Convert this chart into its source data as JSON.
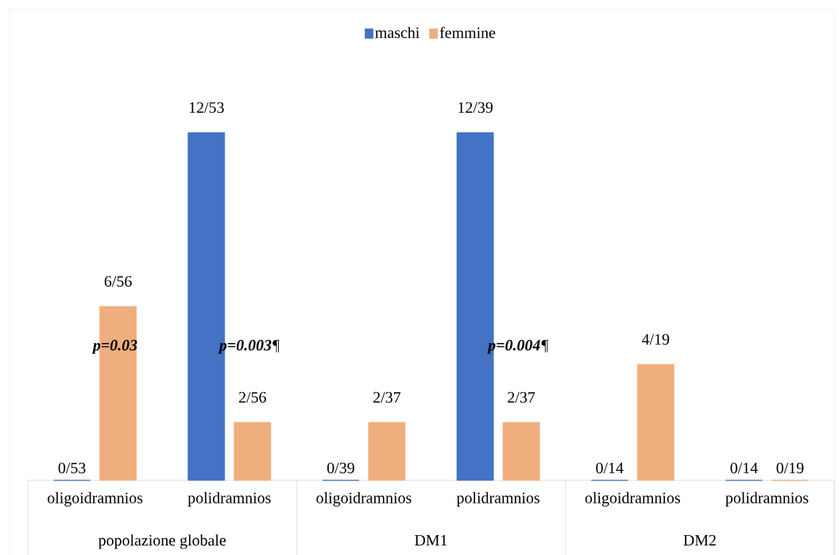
{
  "chart_data": {
    "type": "bar",
    "legend": "top",
    "categories": [
      "oligoidramnios",
      "polidramnios",
      "oligoidramnios",
      "polidramnios",
      "oligoidramnios",
      "polidramnios"
    ],
    "series": [
      {
        "name": "maschi",
        "color": "#4472c4",
        "values": [
          0,
          12,
          0,
          12,
          0,
          0
        ],
        "value_labels": [
          "0/53",
          "12/53",
          "0/39",
          "12/39",
          "0/14",
          "0/14"
        ]
      },
      {
        "name": "femmine",
        "color": "#f0ae7e",
        "values": [
          6,
          2,
          2,
          2,
          4,
          0
        ],
        "value_labels": [
          "6/56",
          "2/56",
          "2/37",
          "2/37",
          "4/19",
          "0/19"
        ]
      }
    ],
    "annotations": [
      "popolazione globale",
      "DM1",
      "DM2",
      "**p=0.03**",
      "**p=0.003**¶",
      "**p=0.004**¶"
    ]
  }
}
